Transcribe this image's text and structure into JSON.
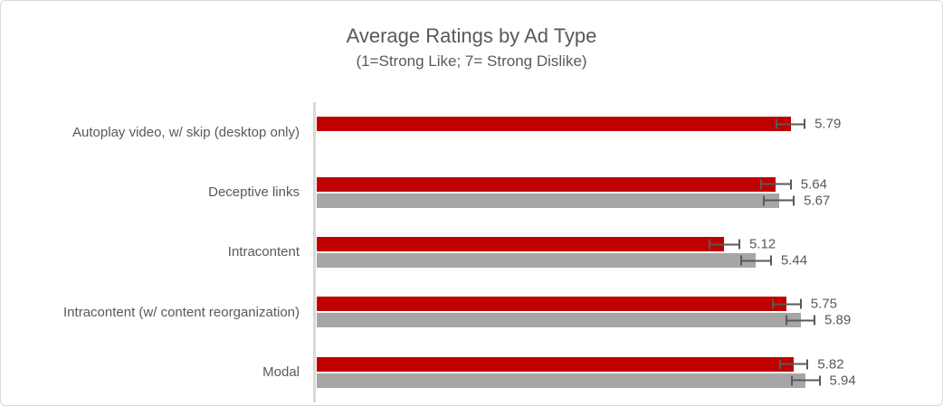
{
  "frame": {
    "background": "#FFFFFF",
    "border_color": "#D9D9D9"
  },
  "chart_data": {
    "type": "bar",
    "orientation": "horizontal",
    "title": "Average Ratings by Ad Type",
    "subtitle": "(1=Strong Like; 7= Strong Dislike)",
    "title_color": "#595959",
    "categories": [
      "Autoplay video, w/ skip (desktop only)",
      "Deceptive links",
      "Intracontent",
      "Intracontent (w/ content reorganization)",
      "Modal"
    ],
    "series": [
      {
        "name": "red",
        "color": "#C00000",
        "values": [
          5.79,
          5.64,
          5.12,
          5.75,
          5.82
        ],
        "errors": [
          0.15,
          0.16,
          0.16,
          0.15,
          0.15
        ]
      },
      {
        "name": "gray",
        "color": "#A6A6A6",
        "values": [
          null,
          5.67,
          5.44,
          5.89,
          5.94
        ],
        "errors": [
          null,
          0.16,
          0.16,
          0.15,
          0.15
        ]
      }
    ],
    "value_labels": {
      "red": [
        "5.79",
        "5.64",
        "5.12",
        "5.75",
        "5.82"
      ],
      "gray": [
        null,
        "5.67",
        "5.44",
        "5.89",
        "5.94"
      ]
    },
    "xlim": [
      1,
      7
    ],
    "grid": false,
    "legend": false,
    "axis_line_color": "#D9D9D9",
    "error_bar_color": "#595959",
    "category_label_color": "#595959",
    "value_label_color": "#595959"
  }
}
